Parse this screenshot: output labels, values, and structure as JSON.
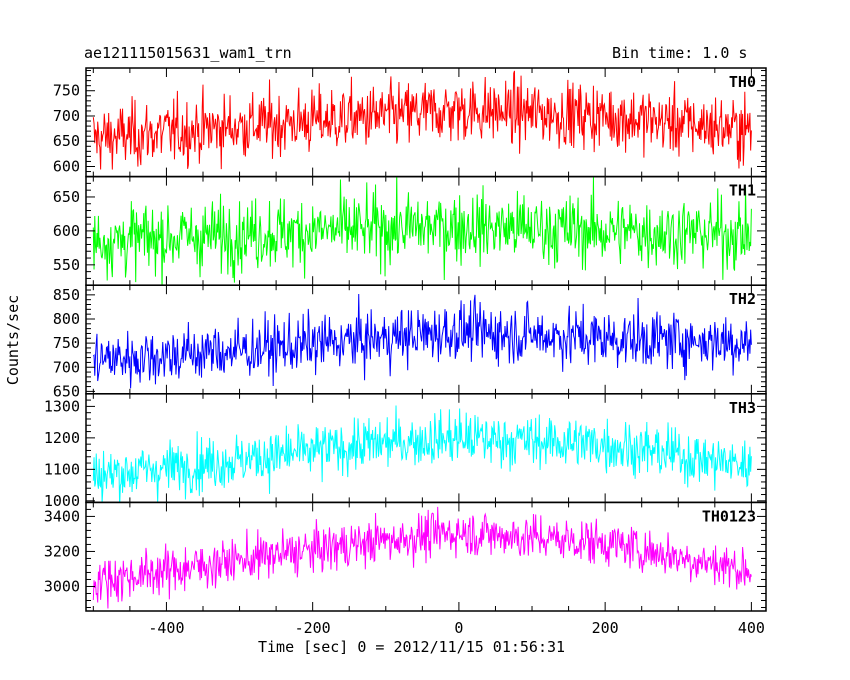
{
  "header": {
    "title": "ae121115015631_wam1_trn",
    "bin_time": "Bin time: 1.0 s"
  },
  "axes": {
    "xlabel": "Time [sec] 0 = 2012/11/15 01:56:31",
    "ylabel": "Counts/sec"
  },
  "chart_data": {
    "type": "line",
    "title": "ae121115015631_wam1_trn",
    "subtitle": "Bin time: 1.0 s",
    "xlabel": "Time [sec] 0 = 2012/11/15 01:56:31",
    "ylabel": "Counts/sec",
    "xlim": [
      -510,
      420
    ],
    "xticks": [
      -400,
      -200,
      0,
      200,
      400
    ],
    "x": {
      "start": -500,
      "end": 400,
      "step": 1
    },
    "grid": false,
    "legend": "none",
    "panels": [
      {
        "name": "TH0",
        "color": "#ff0000",
        "ylim": [
          580,
          795
        ],
        "yticks": [
          600,
          650,
          700,
          750
        ],
        "trend": [
          [
            -500,
            655
          ],
          [
            -300,
            680
          ],
          [
            -100,
            700
          ],
          [
            0,
            712
          ],
          [
            200,
            700
          ],
          [
            400,
            672
          ]
        ],
        "noise_sd": 32
      },
      {
        "name": "TH1",
        "color": "#00ff00",
        "ylim": [
          520,
          680
        ],
        "yticks": [
          550,
          600,
          650
        ],
        "trend": [
          [
            -500,
            585
          ],
          [
            -200,
            600
          ],
          [
            0,
            607
          ],
          [
            200,
            600
          ],
          [
            400,
            595
          ]
        ],
        "noise_sd": 26
      },
      {
        "name": "TH2",
        "color": "#0000ff",
        "ylim": [
          645,
          870
        ],
        "yticks": [
          650,
          700,
          750,
          800,
          850
        ],
        "trend": [
          [
            -500,
            715
          ],
          [
            -300,
            735
          ],
          [
            -100,
            760
          ],
          [
            0,
            775
          ],
          [
            200,
            760
          ],
          [
            400,
            752
          ]
        ],
        "noise_sd": 30
      },
      {
        "name": "TH3",
        "color": "#00ffff",
        "ylim": [
          995,
          1340
        ],
        "yticks": [
          1000,
          1100,
          1200,
          1300
        ],
        "trend": [
          [
            -500,
            1080
          ],
          [
            -300,
            1130
          ],
          [
            -100,
            1185
          ],
          [
            0,
            1200
          ],
          [
            200,
            1180
          ],
          [
            400,
            1110
          ]
        ],
        "noise_sd": 42
      },
      {
        "name": "TH0123",
        "color": "#ff00ff",
        "ylim": [
          2860,
          3480
        ],
        "yticks": [
          3000,
          3200,
          3400
        ],
        "trend": [
          [
            -500,
            3030
          ],
          [
            -300,
            3150
          ],
          [
            -100,
            3265
          ],
          [
            0,
            3310
          ],
          [
            200,
            3250
          ],
          [
            400,
            3090
          ]
        ],
        "noise_sd": 65
      }
    ]
  }
}
